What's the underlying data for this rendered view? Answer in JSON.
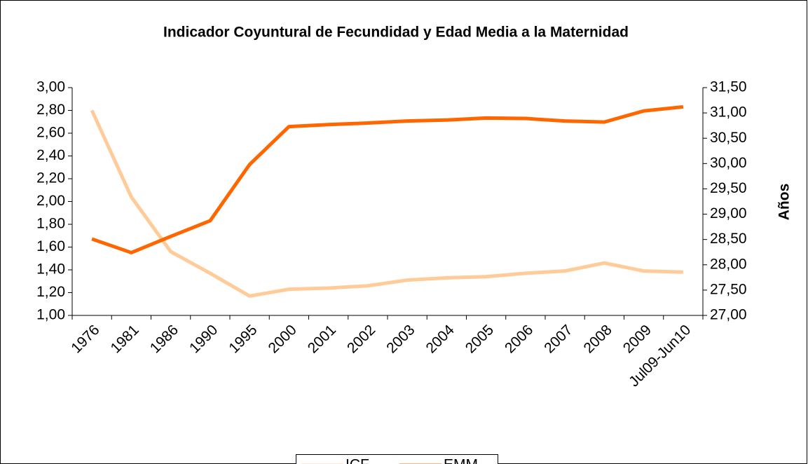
{
  "chart_data": {
    "type": "line",
    "title": "Indicador Coyuntural de Fecundidad y Edad Media a la Maternidad",
    "y2label": "Años",
    "categories": [
      "1976",
      "1981",
      "1986",
      "1990",
      "1995",
      "2000",
      "2001",
      "2002",
      "2003",
      "2004",
      "2005",
      "2006",
      "2007",
      "2008",
      "2009",
      "Jul09-Jun10"
    ],
    "series": [
      {
        "name": "ICF",
        "color": "#FFCC99",
        "values": [
          2.8,
          2.04,
          1.56,
          1.37,
          1.17,
          1.23,
          1.24,
          1.26,
          1.31,
          1.33,
          1.34,
          1.37,
          1.39,
          1.46,
          1.39,
          1.38
        ]
      },
      {
        "name": "EMM",
        "color": "#FF6600",
        "axis": "y2",
        "values": [
          28.51,
          28.24,
          28.56,
          28.87,
          29.98,
          30.73,
          30.77,
          30.8,
          30.84,
          30.86,
          30.9,
          30.89,
          30.84,
          30.82,
          31.04,
          31.12
        ]
      }
    ],
    "ylim": [
      1,
      3
    ],
    "yticks": [
      {
        "value": 1,
        "label": "1,00"
      },
      {
        "value": 1.2,
        "label": "1,20"
      },
      {
        "value": 1.4,
        "label": "1,40"
      },
      {
        "value": 1.6,
        "label": "1,60"
      },
      {
        "value": 1.8,
        "label": "1,80"
      },
      {
        "value": 2,
        "label": "2,00"
      },
      {
        "value": 2.2,
        "label": "2,20"
      },
      {
        "value": 2.4,
        "label": "2,40"
      },
      {
        "value": 2.6,
        "label": "2,60"
      },
      {
        "value": 2.8,
        "label": "2,80"
      },
      {
        "value": 3,
        "label": "3,00"
      }
    ],
    "y2lim": [
      27,
      31.5
    ],
    "y2ticks": [
      {
        "value": 27,
        "label": "27,00"
      },
      {
        "value": 27.5,
        "label": "27,50"
      },
      {
        "value": 28,
        "label": "28,00"
      },
      {
        "value": 28.5,
        "label": "28,50"
      },
      {
        "value": 29,
        "label": "29,00"
      },
      {
        "value": 29.5,
        "label": "29,50"
      },
      {
        "value": 30,
        "label": "30,00"
      },
      {
        "value": 30.5,
        "label": "30,50"
      },
      {
        "value": 31,
        "label": "31,00"
      },
      {
        "value": 31.5,
        "label": "31,50"
      }
    ],
    "legend": "bottom"
  }
}
